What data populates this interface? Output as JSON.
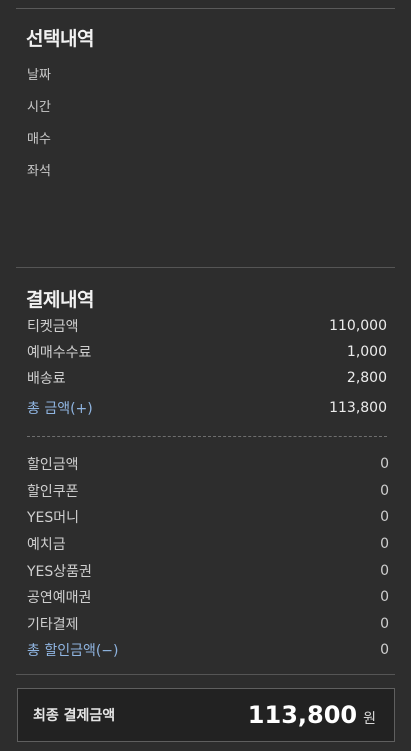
{
  "selection": {
    "title": "선택내역",
    "items": [
      "날짜",
      "시간",
      "매수",
      "좌석"
    ]
  },
  "payment": {
    "title": "결제내역",
    "charges": [
      {
        "label": "티켓금액",
        "value": "110,000"
      },
      {
        "label": "예매수수료",
        "value": "1,000"
      },
      {
        "label": "배송료",
        "value": "2,800"
      }
    ],
    "total": {
      "label": "총 금액(+)",
      "value": "113,800"
    },
    "discounts": [
      {
        "label": "할인금액",
        "value": "0"
      },
      {
        "label": "할인쿠폰",
        "value": "0"
      },
      {
        "label": "YES머니",
        "value": "0"
      },
      {
        "label": "예치금",
        "value": "0"
      },
      {
        "label": "YES상품권",
        "value": "0"
      },
      {
        "label": "공연예매권",
        "value": "0"
      },
      {
        "label": "기타결제",
        "value": "0"
      }
    ],
    "discount_total": {
      "label": "총 할인금액(−)",
      "value": "0"
    }
  },
  "final": {
    "label": "최종 결제금액",
    "amount": "113,800",
    "unit": "원"
  },
  "colors": {
    "background": "#2d2d2d",
    "total_label": "#8fb4e0",
    "final_box": "#222222"
  }
}
